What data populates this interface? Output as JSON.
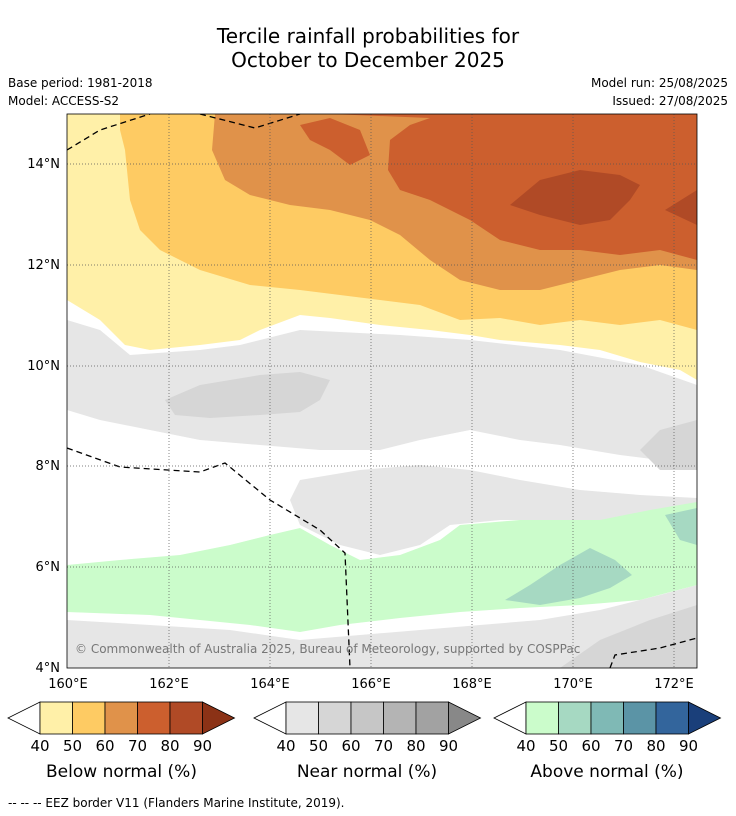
{
  "title_line1": "Tercile rainfall probabilities for",
  "title_line2": "October to December 2025",
  "base_period": "Base period: 1981-2018",
  "model": "Model: ACCESS-S2",
  "model_run": "Model run: 25/08/2025",
  "issued": "Issued: 27/08/2025",
  "copyright": "© Commonwealth of Australia 2025, Bureau of Meteorology, supported by COSPPac",
  "lat_ticks": [
    "14°N",
    "12°N",
    "10°N",
    "8°N",
    "6°N",
    "4°N"
  ],
  "lon_ticks": [
    "160°E",
    "162°E",
    "164°E",
    "166°E",
    "168°E",
    "170°E",
    "172°E"
  ],
  "colorbars": [
    {
      "name": "below",
      "label": "Below normal (%)",
      "ticks": [
        "40",
        "50",
        "60",
        "70",
        "80",
        "90"
      ],
      "colors": [
        "#fff0a8",
        "#fecb63",
        "#e0924a",
        "#cc5f2e",
        "#b04a26",
        "#8b3216"
      ]
    },
    {
      "name": "near",
      "label": "Near normal (%)",
      "ticks": [
        "40",
        "50",
        "60",
        "70",
        "80",
        "90"
      ],
      "colors": [
        "#e6e6e6",
        "#d6d6d6",
        "#c6c6c6",
        "#b4b4b4",
        "#a2a2a2",
        "#888888"
      ]
    },
    {
      "name": "above",
      "label": "Above normal (%)",
      "ticks": [
        "40",
        "50",
        "60",
        "70",
        "80",
        "90"
      ],
      "colors": [
        "#cbfccb",
        "#a6d9c2",
        "#7fb9b5",
        "#5b94a6",
        "#33659c",
        "#1a3f7a"
      ]
    }
  ],
  "footer": "--  --  -- EEZ border V11 (Flanders Marine Institute, 2019)."
}
